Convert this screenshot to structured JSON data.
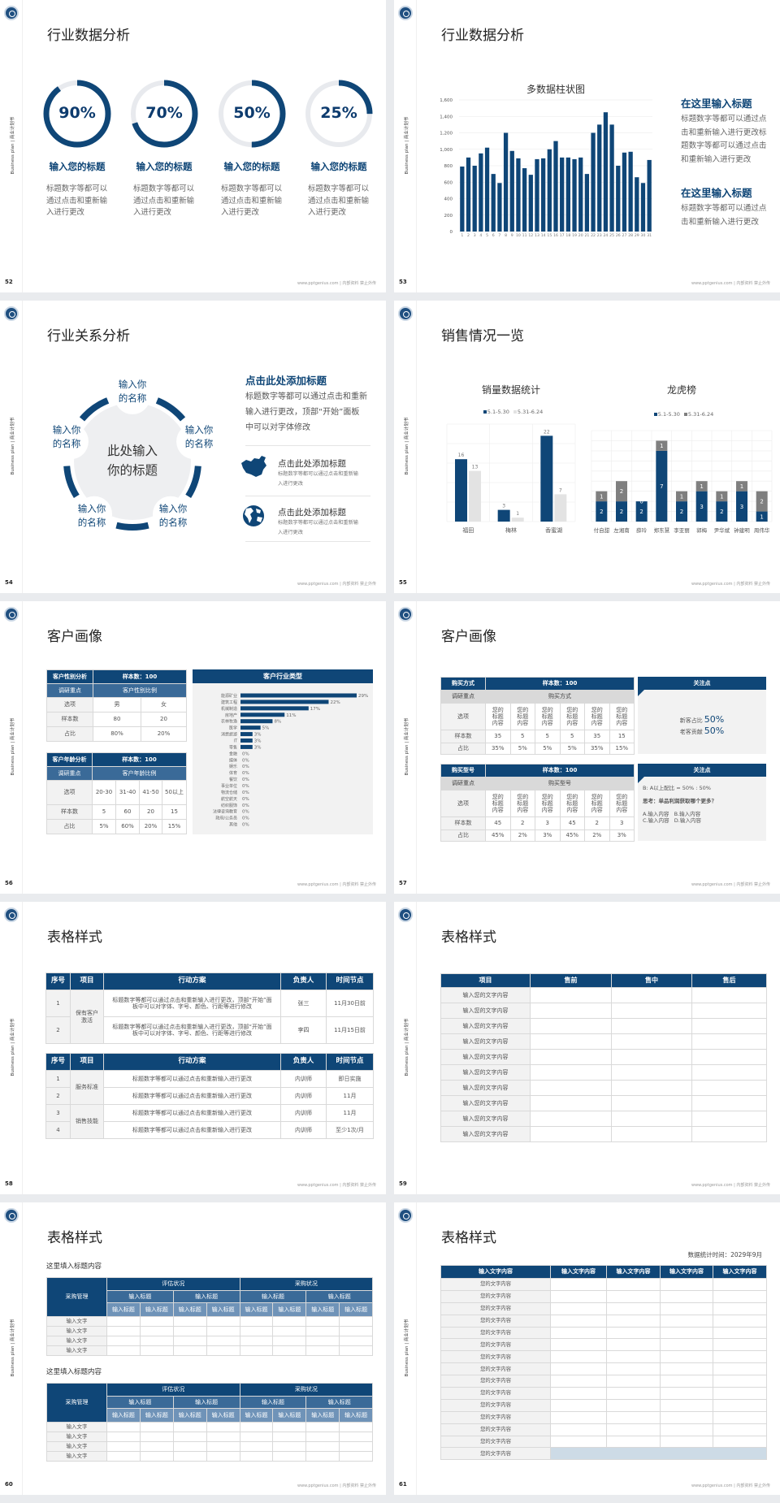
{
  "common": {
    "side_text": "Business plan | 商业计划书",
    "footer": "www.pptgenius.com | 内部资料 禁止外传",
    "logo": "logo-emblem"
  },
  "colors": {
    "primary": "#0f4677",
    "secondary": "#3a6a98",
    "light_grey": "#f2f2f2",
    "ring_track": "#e8eaee",
    "series_grey": "#7f7f7f",
    "series_light": "#e3e3e3",
    "highlight_blue": "#cddbe6"
  },
  "slides": [
    {
      "page": "52",
      "title": "行业数据分析",
      "rings": [
        {
          "percent": 90,
          "label": "90%",
          "heading": "输入您的标题",
          "text": "标题数字等都可以通过点击和重新输入进行更改"
        },
        {
          "percent": 70,
          "label": "70%",
          "heading": "输入您的标题",
          "text": "标题数字等都可以通过点击和重新输入进行更改"
        },
        {
          "percent": 50,
          "label": "50%",
          "heading": "输入您的标题",
          "text": "标题数字等都可以通过点击和重新输入进行更改"
        },
        {
          "percent": 25,
          "label": "25%",
          "heading": "输入您的标题",
          "text": "标题数字等都可以通过点击和重新输入进行更改"
        }
      ]
    },
    {
      "page": "53",
      "title": "行业数据分析",
      "side": [
        {
          "heading": "在这里输入标题",
          "text": "标题数字等都可以通过点击和重新输入进行更改标题数字等都可以通过点击和重新输入进行更改"
        },
        {
          "heading": "在这里输入标题",
          "text": "标题数字等都可以通过点击和重新输入进行更改"
        }
      ]
    },
    {
      "page": "54",
      "title": "行业关系分析",
      "center": "此处输入你的标题",
      "nodes": [
        "输入你的名称",
        "输入你的名称",
        "输入你的名称",
        "输入你的名称",
        "输入你的名称"
      ],
      "heading": "点击此处添加标题",
      "text": "标题数字等都可以通过点击和重新输入进行更改，顶部“开始”面板中可以对字体修改",
      "items": [
        {
          "icon": "china-map-icon",
          "heading": "点击此处添加标题",
          "text": "标题数字等都可以通过点击和重新输入进行更改"
        },
        {
          "icon": "globe-icon",
          "heading": "点击此处添加标题",
          "text": "标题数字等都可以通过点击和重新输入进行更改"
        }
      ]
    },
    {
      "page": "55",
      "title": "销售情况一览"
    },
    {
      "page": "56",
      "title": "客户画像",
      "gender_table": [
        [
          "客户性别分析",
          "样本数：100"
        ],
        [
          "调研重点",
          "客户性别比例"
        ],
        [
          "选项",
          "男",
          "女"
        ],
        [
          "样本数",
          "80",
          "20"
        ],
        [
          "占比",
          "80%",
          "20%"
        ]
      ],
      "age_table": [
        [
          "客户年龄分析",
          "样本数：100"
        ],
        [
          "调研重点",
          "客户年龄比例"
        ],
        [
          "选项",
          "20-30",
          "31-40",
          "41-50",
          "50以上"
        ],
        [
          "样本数",
          "5",
          "60",
          "20",
          "15"
        ],
        [
          "占比",
          "5%",
          "60%",
          "20%",
          "15%"
        ]
      ]
    },
    {
      "page": "57",
      "title": "客户画像",
      "tables": [
        [
          [
            "购买方式",
            "样本数：100"
          ],
          [
            "调研重点",
            "购买方式"
          ],
          [
            "选项",
            "您的标题内容",
            "您的标题内容",
            "您的标题内容",
            "您的标题内容",
            "您的标题内容",
            "您的标题内容"
          ],
          [
            "样本数",
            "35",
            "5",
            "5",
            "5",
            "35",
            "15"
          ],
          [
            "占比",
            "35%",
            "5%",
            "5%",
            "5%",
            "35%",
            "15%"
          ]
        ],
        [
          [
            "购买型号",
            "样本数：100"
          ],
          [
            "调研重点",
            "购买型号"
          ],
          [
            "选项",
            "您的标题内容",
            "您的标题内容",
            "您的标题内容",
            "您的标题内容",
            "您的标题内容",
            "您的标题内容"
          ],
          [
            "样本数",
            "45",
            "2",
            "3",
            "45",
            "2",
            "3"
          ],
          [
            "占比",
            "45%",
            "2%",
            "3%",
            "45%",
            "2%",
            "3%"
          ]
        ]
      ],
      "focus": [
        {
          "header": "关注点",
          "stats": [
            {
              "label": "新客占比",
              "value": "50%"
            },
            {
              "label": "老客贡献",
              "value": "50%"
            }
          ]
        },
        {
          "header": "关注点",
          "lines": [
            "B: A以上配比 = 50% : 50%",
            "思考：单品利润获取哪个更多？",
            "A.输入内容   B.输入内容",
            "C.输入内容   D.输入内容"
          ]
        }
      ]
    },
    {
      "page": "58",
      "title": "表格样式",
      "headers": [
        "序号",
        "项目",
        "行动方案",
        "负责人",
        "时间节点"
      ],
      "table1": {
        "project": "保有客户激活",
        "rows": [
          {
            "no": "1",
            "plan": "标题数字等都可以通过点击和重新输入进行更改，顶部“开始”面板中可以对字体、字号、颜色、行距等进行修改",
            "owner": "张三",
            "time": "11月30日前"
          },
          {
            "no": "2",
            "plan": "标题数字等都可以通过点击和重新输入进行更改，顶部“开始”面板中可以对字体、字号、颜色、行距等进行修改",
            "owner": "李四",
            "time": "11月15日前"
          }
        ]
      },
      "table2": {
        "projects": [
          "服务标准",
          "销售技能"
        ],
        "rows": [
          {
            "no": "1",
            "plan": "标题数字等都可以通过点击和重新输入进行更改",
            "owner": "内训师",
            "time": "即日实施"
          },
          {
            "no": "2",
            "plan": "标题数字等都可以通过点击和重新输入进行更改",
            "owner": "内训师",
            "time": "11月"
          },
          {
            "no": "3",
            "plan": "标题数字等都可以通过点击和重新输入进行更改",
            "owner": "内训师",
            "time": "11月"
          },
          {
            "no": "4",
            "plan": "标题数字等都可以通过点击和重新输入进行更改",
            "owner": "内训师",
            "time": "至少1次/月"
          }
        ]
      }
    },
    {
      "page": "59",
      "title": "表格样式",
      "headers": [
        "项目",
        "售前",
        "售中",
        "售后"
      ],
      "rows": [
        "输入您的文字内容",
        "输入您的文字内容",
        "输入您的文字内容",
        "输入您的文字内容",
        "输入您的文字内容",
        "输入您的文字内容",
        "输入您的文字内容",
        "输入您的文字内容",
        "输入您的文字内容",
        "输入您的文字内容"
      ]
    },
    {
      "page": "60",
      "title": "表格样式",
      "sections": [
        {
          "subtitle": "这里填入标题内容",
          "corner": "采购管理",
          "groups": [
            "评估状况",
            "采购状况"
          ],
          "subgroups": [
            "输入标题",
            "输入标题",
            "输入标题",
            "输入标题"
          ],
          "columns": [
            "输入标题",
            "输入标题",
            "输入标题",
            "输入标题",
            "输入标题",
            "输入标题",
            "输入标题",
            "输入标题"
          ],
          "rows": [
            "输入文字",
            "输入文字",
            "输入文字",
            "输入文字"
          ]
        },
        {
          "subtitle": "这里填入标题内容",
          "corner": "采购管理",
          "groups": [
            "评估状况",
            "采购状况"
          ],
          "subgroups": [
            "输入标题",
            "输入标题",
            "输入标题",
            "输入标题"
          ],
          "columns": [
            "输入标题",
            "输入标题",
            "输入标题",
            "输入标题",
            "输入标题",
            "输入标题",
            "输入标题",
            "输入标题"
          ],
          "rows": [
            "输入文字",
            "输入文字",
            "输入文字",
            "输入文字"
          ]
        }
      ]
    },
    {
      "page": "61",
      "title": "表格样式",
      "date": "数据统计时间：2029年9月",
      "headers": [
        "输入文字内容",
        "输入文字内容",
        "输入文字内容",
        "输入文字内容",
        "输入文字内容"
      ],
      "rows": [
        "您的文字内容",
        "您的文字内容",
        "您的文字内容",
        "您的文字内容",
        "您的文字内容",
        "您的文字内容",
        "您的文字内容",
        "您的文字内容",
        "您的文字内容",
        "您的文字内容",
        "您的文字内容",
        "您的文字内容",
        "您的文字内容",
        "您的文字内容",
        "您的文字内容"
      ]
    }
  ],
  "chart_data": [
    {
      "type": "bar",
      "title": "多数据柱状图",
      "categories": [
        "1",
        "2",
        "3",
        "4",
        "5",
        "6",
        "7",
        "8",
        "9",
        "10",
        "11",
        "12",
        "13",
        "14",
        "15",
        "16",
        "17",
        "18",
        "19",
        "20",
        "21",
        "22",
        "23",
        "24",
        "25",
        "26",
        "27",
        "28",
        "29",
        "30",
        "31"
      ],
      "values": [
        790,
        900,
        800,
        950,
        1020,
        700,
        590,
        1200,
        980,
        890,
        770,
        690,
        880,
        890,
        1000,
        1100,
        900,
        900,
        880,
        900,
        700,
        1200,
        1300,
        1450,
        1300,
        800,
        960,
        970,
        660,
        590,
        870
      ],
      "ylim": [
        0,
        1600
      ],
      "yticks": [
        "0",
        "200",
        "400",
        "600",
        "800",
        "1,000",
        "1,200",
        "1,400",
        "1,600"
      ],
      "grid": true,
      "color": "#0f4677"
    },
    {
      "type": "bar",
      "title": "销量数据统计",
      "categories": [
        "福田",
        "梅林",
        "香蜜湖"
      ],
      "series": [
        {
          "name": "5.1-5.30",
          "values": [
            16,
            3,
            22
          ],
          "color": "#0f4677"
        },
        {
          "name": "5.31-6.24",
          "values": [
            13,
            1,
            7
          ],
          "color": "#e3e3e3"
        }
      ],
      "ylim": [
        0,
        25
      ],
      "grid": true,
      "legend": "top"
    },
    {
      "type": "bar",
      "stacked": true,
      "title": "龙虎榜",
      "categories": [
        "付自甜",
        "左湘南",
        "薛玲",
        "郑东慧",
        "李亚丽",
        "郭梅",
        "尹华斌",
        "钟建明",
        "周伟华"
      ],
      "series": [
        {
          "name": "5.1-5.30",
          "values": [
            2,
            2,
            2,
            7,
            2,
            3,
            2,
            3,
            1
          ],
          "color": "#0f4677"
        },
        {
          "name": "5.31-6.24",
          "values": [
            1,
            2,
            0,
            1,
            1,
            1,
            1,
            1,
            2
          ],
          "color": "#7f7f7f"
        }
      ],
      "ylim": [
        0,
        9
      ],
      "grid": true,
      "legend": "top"
    },
    {
      "type": "bar",
      "orientation": "horizontal",
      "title": "客户行业类型",
      "categories": [
        "能源矿业",
        "建筑工程",
        "机械制造",
        "房地产",
        "农林牧渔",
        "医学",
        "消费旅游",
        "IT",
        "零售",
        "金融",
        "媒体",
        "娱乐",
        "体育",
        "餐饮",
        "事业单位",
        "物流仓储",
        "航空航天",
        "纺织服饰",
        "法律咨询教育",
        "政府/公务员",
        "其他"
      ],
      "values": [
        29,
        22,
        17,
        11,
        8,
        5,
        3,
        3,
        3,
        0,
        0,
        0,
        0,
        0,
        0,
        0,
        0,
        0,
        0,
        0,
        0
      ],
      "value_labels": [
        "29%",
        "22%",
        "17%",
        "11%",
        "8%",
        "5%",
        "3%",
        "3%",
        "3%",
        "0%",
        "0%",
        "0%",
        "0%",
        "0%",
        "0%",
        "0%",
        "0%",
        "0%",
        "0%",
        "0%",
        "0%"
      ],
      "color": "#0f4677"
    }
  ]
}
